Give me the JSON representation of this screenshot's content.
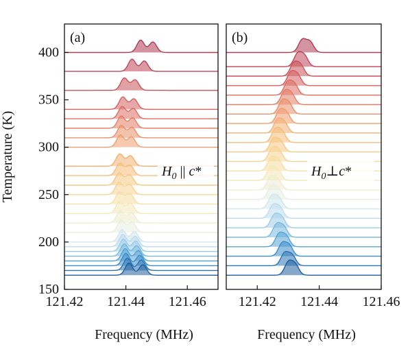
{
  "chart_data": [
    {
      "type": "area",
      "panel_label": "(a)",
      "annotation": {
        "base": "H",
        "sub": "0",
        "rel": " || ",
        "var": "c",
        "suffix": "*"
      },
      "xlabel": "Frequency (MHz)",
      "ylabel": "Temperature (K)",
      "xlim": [
        121.42,
        121.47
      ],
      "x_ticks": [
        121.42,
        121.44,
        121.46
      ],
      "x_tick_labels": [
        "121.42",
        "121.44",
        "121.46"
      ],
      "ylim": [
        150,
        430
      ],
      "y_ticks": [
        150,
        200,
        250,
        300,
        350,
        400
      ],
      "y_tick_labels": [
        "150",
        "200",
        "250",
        "300",
        "350",
        "400"
      ],
      "grid": false,
      "series": [
        {
          "temperature": 165,
          "peak1": 121.441,
          "peak2": 121.4455,
          "color": "#1f5f9e"
        },
        {
          "temperature": 170,
          "peak1": 121.4405,
          "peak2": 121.445,
          "color": "#2b74b4"
        },
        {
          "temperature": 175,
          "peak1": 121.44,
          "peak2": 121.4445,
          "color": "#3c8cc8"
        },
        {
          "temperature": 180,
          "peak1": 121.4398,
          "peak2": 121.444,
          "color": "#56a3d6"
        },
        {
          "temperature": 185,
          "peak1": 121.4395,
          "peak2": 121.4435,
          "color": "#78b9e0"
        },
        {
          "temperature": 190,
          "peak1": 121.4392,
          "peak2": 121.4432,
          "color": "#9ccce8"
        },
        {
          "temperature": 195,
          "peak1": 121.439,
          "peak2": 121.443,
          "color": "#bcdcee"
        },
        {
          "temperature": 200,
          "peak1": 121.4388,
          "peak2": 121.4428,
          "color": "#d2e6ef"
        },
        {
          "temperature": 210,
          "peak1": 121.4385,
          "peak2": 121.442,
          "color": "#e6eee2"
        },
        {
          "temperature": 220,
          "peak1": 121.4382,
          "peak2": 121.4418,
          "color": "#efedcf"
        },
        {
          "temperature": 230,
          "peak1": 121.438,
          "peak2": 121.4415,
          "color": "#f4e8b8"
        },
        {
          "temperature": 240,
          "peak1": 121.438,
          "peak2": 121.4413,
          "color": "#f6dfa3"
        },
        {
          "temperature": 250,
          "peak1": 121.4378,
          "peak2": 121.4412,
          "color": "#f7d492"
        },
        {
          "temperature": 260,
          "peak1": 121.4378,
          "peak2": 121.4412,
          "color": "#f6c984"
        },
        {
          "temperature": 270,
          "peak1": 121.438,
          "peak2": 121.4413,
          "color": "#f5bd7a"
        },
        {
          "temperature": 280,
          "peak1": 121.438,
          "peak2": 121.4415,
          "color": "#f3b072"
        },
        {
          "temperature": 300,
          "peak1": 121.4382,
          "peak2": 121.4418,
          "color": "#ef9f6d"
        },
        {
          "temperature": 310,
          "peak1": 121.4385,
          "peak2": 121.442,
          "color": "#ea8f6a"
        },
        {
          "temperature": 320,
          "peak1": 121.4385,
          "peak2": 121.4422,
          "color": "#e47e66"
        },
        {
          "temperature": 330,
          "peak1": 121.4388,
          "peak2": 121.4424,
          "color": "#dc6e62"
        },
        {
          "temperature": 340,
          "peak1": 121.439,
          "peak2": 121.4426,
          "color": "#d3605e"
        },
        {
          "temperature": 360,
          "peak1": 121.4395,
          "peak2": 121.443,
          "color": "#c9525a"
        },
        {
          "temperature": 380,
          "peak1": 121.442,
          "peak2": 121.446,
          "color": "#bd4657"
        },
        {
          "temperature": 400,
          "peak1": 121.4448,
          "peak2": 121.4488,
          "color": "#b03b52"
        }
      ]
    },
    {
      "type": "area",
      "panel_label": "(b)",
      "annotation": {
        "base": "H",
        "sub": "0",
        "rel": "⊥",
        "var": "c",
        "suffix": "*"
      },
      "xlabel": "Frequency (MHz)",
      "ylabel": "",
      "xlim": [
        121.41,
        121.46
      ],
      "x_ticks": [
        121.42,
        121.44,
        121.46
      ],
      "x_tick_labels": [
        "121.42",
        "121.44",
        "121.46"
      ],
      "ylim": [
        150,
        430
      ],
      "grid": false,
      "series": [
        {
          "temperature": 165,
          "peak1": 121.43,
          "peak2": 121.4322,
          "color": "#1f5f9e"
        },
        {
          "temperature": 175,
          "peak1": 121.4288,
          "peak2": 121.4312,
          "color": "#2b74b4"
        },
        {
          "temperature": 185,
          "peak1": 121.428,
          "peak2": 121.4303,
          "color": "#3c8cc8"
        },
        {
          "temperature": 195,
          "peak1": 121.427,
          "peak2": 121.4293,
          "color": "#56a3d6"
        },
        {
          "temperature": 205,
          "peak1": 121.4262,
          "peak2": 121.4285,
          "color": "#78b9e0"
        },
        {
          "temperature": 215,
          "peak1": 121.4255,
          "peak2": 121.4278,
          "color": "#9ccce8"
        },
        {
          "temperature": 225,
          "peak1": 121.425,
          "peak2": 121.4273,
          "color": "#bcdcee"
        },
        {
          "temperature": 235,
          "peak1": 121.4247,
          "peak2": 121.427,
          "color": "#d2e6ef"
        },
        {
          "temperature": 245,
          "peak1": 121.4245,
          "peak2": 121.4268,
          "color": "#e6eee2"
        },
        {
          "temperature": 255,
          "peak1": 121.4243,
          "peak2": 121.4266,
          "color": "#efedcf"
        },
        {
          "temperature": 265,
          "peak1": 121.4243,
          "peak2": 121.4266,
          "color": "#f4e8b8"
        },
        {
          "temperature": 275,
          "peak1": 121.4245,
          "peak2": 121.4268,
          "color": "#f6dfa3"
        },
        {
          "temperature": 285,
          "peak1": 121.4248,
          "peak2": 121.427,
          "color": "#f7d492"
        },
        {
          "temperature": 295,
          "peak1": 121.4252,
          "peak2": 121.4275,
          "color": "#f6c984"
        },
        {
          "temperature": 305,
          "peak1": 121.4258,
          "peak2": 121.428,
          "color": "#f5bd7a"
        },
        {
          "temperature": 315,
          "peak1": 121.4265,
          "peak2": 121.4287,
          "color": "#f3b072"
        },
        {
          "temperature": 325,
          "peak1": 121.4272,
          "peak2": 121.4294,
          "color": "#ef9f6d"
        },
        {
          "temperature": 335,
          "peak1": 121.428,
          "peak2": 121.4302,
          "color": "#ea8f6a"
        },
        {
          "temperature": 345,
          "peak1": 121.4288,
          "peak2": 121.431,
          "color": "#e47e66"
        },
        {
          "temperature": 355,
          "peak1": 121.4298,
          "peak2": 121.432,
          "color": "#dc6e62"
        },
        {
          "temperature": 365,
          "peak1": 121.4308,
          "peak2": 121.433,
          "color": "#d3605e"
        },
        {
          "temperature": 375,
          "peak1": 121.4318,
          "peak2": 121.434,
          "color": "#c9525a"
        },
        {
          "temperature": 385,
          "peak1": 121.433,
          "peak2": 121.4352,
          "color": "#bd4657"
        },
        {
          "temperature": 400,
          "peak1": 121.4345,
          "peak2": 121.437,
          "color": "#b03b52"
        }
      ]
    }
  ]
}
